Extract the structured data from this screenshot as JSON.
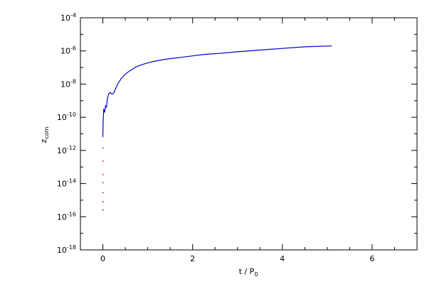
{
  "chart_data": {
    "type": "line",
    "xlabel": "t / P",
    "xlabel_sub": "0",
    "ylabel": "z",
    "ylabel_sub": "com",
    "xlim": [
      -0.5,
      7
    ],
    "ylim_log10": [
      -18,
      -4
    ],
    "yscale": "log",
    "grid": false,
    "x_ticks": [
      0,
      2,
      4,
      6
    ],
    "y_ticks_exp": [
      -18,
      -16,
      -14,
      -12,
      -10,
      -8,
      -6,
      -4
    ],
    "y_tick_base": "10",
    "series": [
      {
        "color": "#0000cc",
        "points": [
          [
            0.0,
            -11.2
          ],
          [
            0.005,
            -10.5
          ],
          [
            0.01,
            -10.0
          ],
          [
            0.02,
            -9.5
          ],
          [
            0.04,
            -9.7
          ],
          [
            0.06,
            -9.3
          ],
          [
            0.08,
            -9.4
          ],
          [
            0.1,
            -8.9
          ],
          [
            0.13,
            -8.6
          ],
          [
            0.16,
            -8.5
          ],
          [
            0.2,
            -8.6
          ],
          [
            0.24,
            -8.55
          ],
          [
            0.28,
            -8.3
          ],
          [
            0.33,
            -8.0
          ],
          [
            0.4,
            -7.7
          ],
          [
            0.5,
            -7.4
          ],
          [
            0.6,
            -7.2
          ],
          [
            0.75,
            -6.95
          ],
          [
            0.9,
            -6.8
          ],
          [
            1.1,
            -6.65
          ],
          [
            1.4,
            -6.5
          ],
          [
            1.7,
            -6.4
          ],
          [
            2.0,
            -6.3
          ],
          [
            2.3,
            -6.2
          ],
          [
            2.6,
            -6.15
          ],
          [
            3.0,
            -6.05
          ],
          [
            3.5,
            -5.95
          ],
          [
            4.0,
            -5.85
          ],
          [
            4.5,
            -5.75
          ],
          [
            5.1,
            -5.7
          ]
        ]
      }
    ],
    "scatter_series": [
      {
        "color": "#cc0000",
        "points": [
          [
            0.0,
            -11.85
          ],
          [
            0.0,
            -12.65
          ],
          [
            0.0,
            -13.45
          ],
          [
            0.0,
            -13.95
          ],
          [
            0.0,
            -14.55
          ],
          [
            0.0,
            -15.1
          ],
          [
            0.0,
            -15.6
          ]
        ]
      }
    ]
  }
}
